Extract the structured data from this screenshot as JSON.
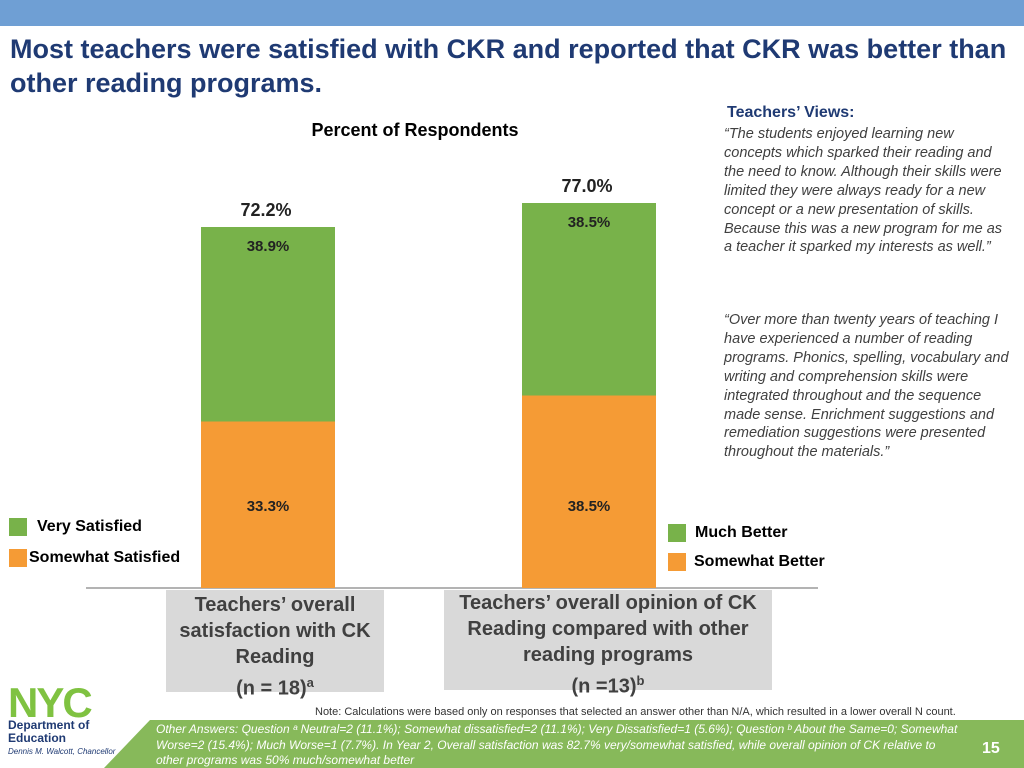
{
  "title": "Most teachers were satisfied with CKR and reported that CKR was better than other reading programs.",
  "chart_data": {
    "type": "bar",
    "stacked": true,
    "title": "Percent of Respondents",
    "ylim": [
      0,
      100
    ],
    "categories": [
      {
        "label": "Teachers’ overall satisfaction with CK Reading",
        "n_label": "(n = 18)",
        "n_sup": "a",
        "total_label": "72.2%",
        "segments": [
          {
            "name": "Somewhat Satisfied",
            "value": 33.3,
            "label": "33.3%",
            "color": "#f59b35"
          },
          {
            "name": "Very Satisfied",
            "value": 38.9,
            "label": "38.9%",
            "color": "#78b24a"
          }
        ]
      },
      {
        "label": "Teachers’ overall opinion of CK Reading compared with other reading programs",
        "n_label": "(n =13)",
        "n_sup": "b",
        "total_label": "77.0%",
        "segments": [
          {
            "name": "Somewhat Better",
            "value": 38.5,
            "label": "38.5%",
            "color": "#f59b35"
          },
          {
            "name": "Much Better",
            "value": 38.5,
            "label": "38.5%",
            "color": "#78b24a"
          }
        ]
      }
    ],
    "legend_left": [
      "Very Satisfied",
      "Somewhat Satisfied"
    ],
    "legend_right": [
      "Much Better",
      "Somewhat Better"
    ]
  },
  "views": {
    "heading": "Teachers’ Views:",
    "quote1": "“The students enjoyed learning new concepts which sparked their reading and the need to know. Although their skills were limited they were always ready for a new concept or a new presentation of skills. Because this was a new program for me as a teacher it sparked my interests as well.”",
    "quote2": "“Over more than twenty years of teaching I have experienced a number of reading programs.  Phonics, spelling, vocabulary and writing and comprehension skills were integrated throughout and the sequence made sense.  Enrichment suggestions and remediation suggestions were presented throughout the materials.”"
  },
  "note": "Note: Calculations were based only on responses that selected an answer other than N/A, which resulted in a lower overall N count.",
  "other_answers": "Other Answers: Question ᵃ  Neutral=2 (11.1%); Somewhat dissatisfied=2 (11.1%); Very Dissatisfied=1 (5.6%); Question ᵇ  About the Same=0; Somewhat Worse=2 (15.4%); Much Worse=1 (7.7%).  In Year 2, Overall satisfaction was 82.7% very/somewhat satisfied, while overall opinion of CK relative to other programs was 50% much/somewhat better",
  "page_number": "15",
  "logo": {
    "mark": "NYC",
    "line1": "Department of",
    "line2": "Education",
    "chancellor": "Dennis M. Walcott, Chancellor"
  }
}
